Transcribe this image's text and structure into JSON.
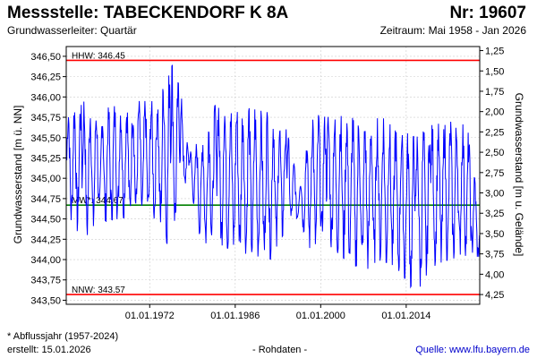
{
  "header": {
    "title": "Messstelle: TABECKENDORF K 8A",
    "number": "Nr: 19607",
    "aquifer": "Grundwasserleiter: Quartär",
    "period": "Zeitraum: Mai 1958 - Jan 2026"
  },
  "footer": {
    "footnote": "* Abflussjahr (1957-2024)",
    "created": "erstellt:  15.01.2026",
    "raw": "- Rohdaten -",
    "source": "Quelle:  www.lfu.bayern.de"
  },
  "colors": {
    "series": "#0000ff",
    "extreme_lines": "#ff0000",
    "mean_line": "#008000",
    "grid": "#cccccc"
  },
  "chart_data": {
    "type": "line",
    "ylabel": "Grundwasserstand [m ü. NN]",
    "y2label": "Grundwasserstand [m u. Gelände]",
    "ylim": [
      343.45,
      346.62
    ],
    "y_ticks": [
      "346,50",
      "346,25",
      "346,00",
      "345,75",
      "345,50",
      "345,25",
      "345,00",
      "344,75",
      "344,50",
      "344,25",
      "344,00",
      "343,75",
      "343,50"
    ],
    "y2_ticks": [
      "1,25",
      "1,50",
      "1,75",
      "2,00",
      "2,25",
      "2,50",
      "2,75",
      "3,00",
      "3,25",
      "3,50",
      "3,75",
      "4,00",
      "4,25"
    ],
    "xlim": [
      "1958-05-01",
      "2026-01-15"
    ],
    "x_ticks": [
      "01.01.1972",
      "01.01.1986",
      "01.01.2000",
      "01.01.2014"
    ],
    "grid": true,
    "reference_lines": [
      {
        "label": "HHW: 346.45",
        "value": 346.45,
        "kind": "max"
      },
      {
        "label": "MW*: 344.67",
        "value": 344.67,
        "kind": "mean"
      },
      {
        "label": "NNW: 343.57",
        "value": 343.57,
        "kind": "min"
      }
    ],
    "series_envelope": [
      {
        "x": "1958-06-01",
        "min": 344.55,
        "max": 345.9
      },
      {
        "x": "1961-01-01",
        "min": 344.25,
        "max": 345.95
      },
      {
        "x": "1964-01-01",
        "min": 344.45,
        "max": 345.85
      },
      {
        "x": "1967-01-01",
        "min": 344.5,
        "max": 345.9
      },
      {
        "x": "1970-01-01",
        "min": 344.55,
        "max": 345.95
      },
      {
        "x": "1973-01-01",
        "min": 344.5,
        "max": 345.95
      },
      {
        "x": "1975-06-01",
        "min": 344.1,
        "max": 346.45
      },
      {
        "x": "1977-01-01",
        "min": 344.7,
        "max": 346.1
      },
      {
        "x": "1978-06-01",
        "min": 345.0,
        "max": 345.3
      },
      {
        "x": "1980-06-01",
        "min": 344.2,
        "max": 345.5
      },
      {
        "x": "1983-01-01",
        "min": 344.2,
        "max": 345.95
      },
      {
        "x": "1986-01-01",
        "min": 344.1,
        "max": 345.9
      },
      {
        "x": "1989-01-01",
        "min": 344.05,
        "max": 345.85
      },
      {
        "x": "1992-01-01",
        "min": 344.0,
        "max": 345.8
      },
      {
        "x": "1994-06-01",
        "min": 344.4,
        "max": 345.6
      },
      {
        "x": "1996-06-01",
        "min": 344.5,
        "max": 344.9
      },
      {
        "x": "1998-06-01",
        "min": 344.1,
        "max": 345.8
      },
      {
        "x": "2001-01-01",
        "min": 344.2,
        "max": 345.75
      },
      {
        "x": "2004-01-01",
        "min": 344.0,
        "max": 345.8
      },
      {
        "x": "2007-01-01",
        "min": 343.85,
        "max": 345.7
      },
      {
        "x": "2010-01-01",
        "min": 344.0,
        "max": 345.75
      },
      {
        "x": "2013-01-01",
        "min": 343.85,
        "max": 345.6
      },
      {
        "x": "2015-08-01",
        "min": 343.57,
        "max": 345.5
      },
      {
        "x": "2018-01-01",
        "min": 343.9,
        "max": 345.65
      },
      {
        "x": "2021-01-01",
        "min": 344.0,
        "max": 345.7
      },
      {
        "x": "2024-01-01",
        "min": 344.05,
        "max": 345.65
      },
      {
        "x": "2026-01-01",
        "min": 344.0,
        "max": 344.6
      }
    ]
  }
}
